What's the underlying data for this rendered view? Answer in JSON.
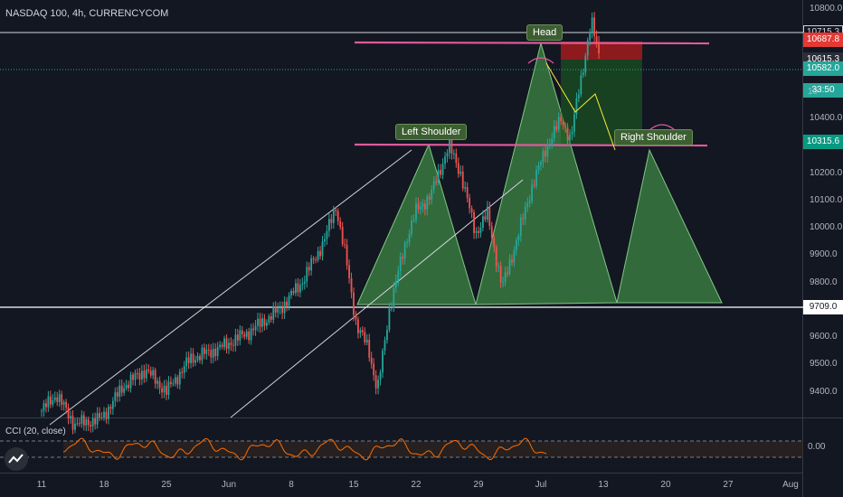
{
  "header": {
    "title": "NASDAQ 100, 4h, CURRENCYCOM"
  },
  "price_axis": {
    "ticks": [
      {
        "label": "10800.0",
        "v": 10800
      },
      {
        "label": "10400.0",
        "v": 10400
      },
      {
        "label": "10200.0",
        "v": 10200
      },
      {
        "label": "10100.0",
        "v": 10100
      },
      {
        "label": "10000.0",
        "v": 10000
      },
      {
        "label": "9900.0",
        "v": 9900
      },
      {
        "label": "9800.0",
        "v": 9800
      },
      {
        "label": "9600.0",
        "v": 9600
      },
      {
        "label": "9500.0",
        "v": 9500
      },
      {
        "label": "9400.0",
        "v": 9400
      }
    ],
    "partial_label": "10",
    "boxes": [
      {
        "label": "10715.3",
        "v": 10715.3,
        "bg": "#131722",
        "fg": "#d1d4dc",
        "border": "#d1d4dc"
      },
      {
        "label": "10687.8",
        "v": 10687.8,
        "bg": "#e53935",
        "fg": "#ffffff"
      },
      {
        "label": "10615.3",
        "v": 10615.3,
        "bg": "#2a2e39",
        "fg": "#ffffff"
      },
      {
        "label": "10582.0",
        "v": 10582.0,
        "bg": "#26a69a",
        "fg": "#ffffff"
      },
      {
        "label": "33:50",
        "v": 10502,
        "bg": "#26a69a",
        "fg": "#ffffff"
      },
      {
        "label": "10315.6",
        "v": 10315.6,
        "bg": "#089981",
        "fg": "#ffffff"
      },
      {
        "label": "9709.0",
        "v": 9709,
        "bg": "#ffffff",
        "fg": "#131722"
      }
    ]
  },
  "time_axis": {
    "ticks": [
      {
        "label": "11",
        "bar": 0
      },
      {
        "label": "18",
        "bar": 42
      },
      {
        "label": "25",
        "bar": 84
      },
      {
        "label": "Jun",
        "bar": 126
      },
      {
        "label": "8",
        "bar": 168
      },
      {
        "label": "15",
        "bar": 210
      },
      {
        "label": "22",
        "bar": 252
      },
      {
        "label": "29",
        "bar": 294
      },
      {
        "label": "Jul",
        "bar": 336
      },
      {
        "label": "13",
        "bar": 378
      },
      {
        "label": "20",
        "bar": 420
      },
      {
        "label": "27",
        "bar": 462
      },
      {
        "label": "Aug",
        "bar": 504
      }
    ]
  },
  "pattern_labels": {
    "head": "Head",
    "left_shoulder": "Left Shoulder",
    "right_shoulder": "Right Shoulder"
  },
  "levels": {
    "neckline_low": 9709,
    "top_line": 10715.3,
    "current": 10582,
    "last": 10615.3
  },
  "colors": {
    "bull": "#26a69a",
    "bear": "#ef5350",
    "bg": "#131722",
    "pattern": "#4caf50",
    "line_pink": "#e05a9d",
    "stop": "#b71c1c",
    "target": "#1b5e20"
  },
  "indicator": {
    "title": "CCI (20, close)",
    "value_label": "0.00",
    "line_color": "#ff6d00"
  },
  "icons": {
    "logo": "tradingview-logo-icon"
  }
}
